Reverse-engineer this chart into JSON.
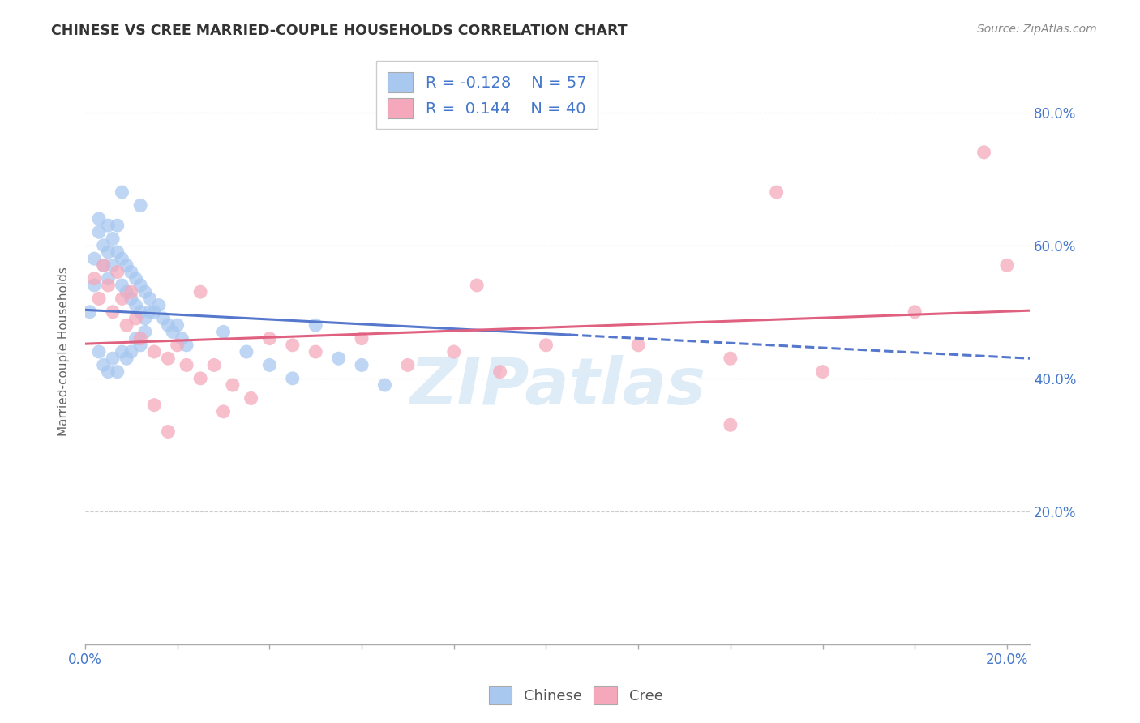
{
  "title": "CHINESE VS CREE MARRIED-COUPLE HOUSEHOLDS CORRELATION CHART",
  "source": "Source: ZipAtlas.com",
  "ylabel": "Married-couple Households",
  "xlim": [
    0.0,
    0.205
  ],
  "ylim": [
    0.0,
    0.88
  ],
  "chinese_R": -0.128,
  "chinese_N": 57,
  "cree_R": 0.144,
  "cree_N": 40,
  "chinese_color": "#a8c8f0",
  "cree_color": "#f5a8bc",
  "chinese_line_color": "#5577cc",
  "cree_line_color": "#e06080",
  "tick_color": "#4477cc",
  "watermark_color": "#d0e4f5",
  "watermark": "ZIPatlas",
  "chinese_x": [
    0.001,
    0.002,
    0.002,
    0.003,
    0.003,
    0.004,
    0.004,
    0.005,
    0.005,
    0.005,
    0.006,
    0.006,
    0.007,
    0.007,
    0.008,
    0.008,
    0.009,
    0.009,
    0.01,
    0.01,
    0.011,
    0.011,
    0.012,
    0.012,
    0.013,
    0.013,
    0.014,
    0.015,
    0.016,
    0.017,
    0.018,
    0.019,
    0.02,
    0.021,
    0.022,
    0.003,
    0.004,
    0.005,
    0.006,
    0.007,
    0.008,
    0.009,
    0.01,
    0.011,
    0.012,
    0.013,
    0.014,
    0.03,
    0.035,
    0.04,
    0.045,
    0.05,
    0.055,
    0.06,
    0.065,
    0.008,
    0.012
  ],
  "chinese_y": [
    0.5,
    0.54,
    0.58,
    0.62,
    0.64,
    0.6,
    0.57,
    0.63,
    0.59,
    0.55,
    0.61,
    0.57,
    0.63,
    0.59,
    0.58,
    0.54,
    0.57,
    0.53,
    0.56,
    0.52,
    0.55,
    0.51,
    0.54,
    0.5,
    0.53,
    0.49,
    0.52,
    0.5,
    0.51,
    0.49,
    0.48,
    0.47,
    0.48,
    0.46,
    0.45,
    0.44,
    0.42,
    0.41,
    0.43,
    0.41,
    0.44,
    0.43,
    0.44,
    0.46,
    0.45,
    0.47,
    0.5,
    0.47,
    0.44,
    0.42,
    0.4,
    0.48,
    0.43,
    0.42,
    0.39,
    0.68,
    0.66
  ],
  "cree_x": [
    0.002,
    0.003,
    0.004,
    0.005,
    0.006,
    0.007,
    0.008,
    0.009,
    0.01,
    0.011,
    0.012,
    0.015,
    0.018,
    0.02,
    0.022,
    0.025,
    0.028,
    0.032,
    0.036,
    0.04,
    0.045,
    0.05,
    0.06,
    0.07,
    0.08,
    0.09,
    0.1,
    0.12,
    0.14,
    0.16,
    0.18,
    0.195,
    0.2,
    0.085,
    0.15,
    0.14,
    0.03,
    0.015,
    0.018,
    0.025
  ],
  "cree_y": [
    0.55,
    0.52,
    0.57,
    0.54,
    0.5,
    0.56,
    0.52,
    0.48,
    0.53,
    0.49,
    0.46,
    0.44,
    0.43,
    0.45,
    0.42,
    0.4,
    0.42,
    0.39,
    0.37,
    0.46,
    0.45,
    0.44,
    0.46,
    0.42,
    0.44,
    0.41,
    0.45,
    0.45,
    0.43,
    0.41,
    0.5,
    0.74,
    0.57,
    0.54,
    0.68,
    0.33,
    0.35,
    0.36,
    0.32,
    0.53
  ],
  "line_cross_x": 0.105,
  "chinese_line_y0": 0.503,
  "chinese_line_y1": 0.43,
  "cree_line_y0": 0.452,
  "cree_line_y1": 0.502
}
